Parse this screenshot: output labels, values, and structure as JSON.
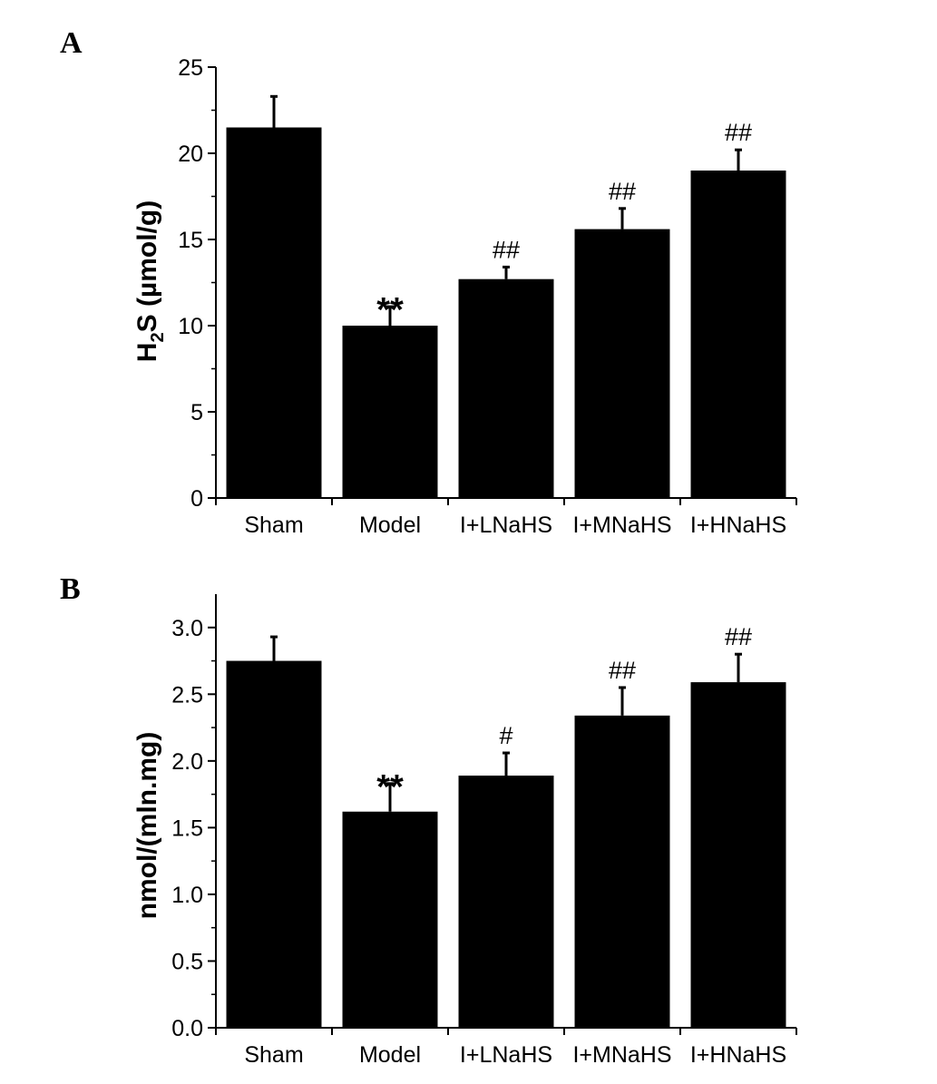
{
  "chart_data": [
    {
      "panel": "A",
      "type": "bar",
      "categories": [
        "Sham",
        "Model",
        "I+LNaHS",
        "I+MNaHS",
        "I+HNaHS"
      ],
      "values": [
        21.5,
        10.0,
        12.7,
        15.6,
        19.0
      ],
      "errors": [
        1.8,
        1.1,
        0.7,
        1.2,
        1.2
      ],
      "annotations": [
        "",
        "**",
        "##",
        "##",
        "##"
      ],
      "ylabel": {
        "prefix": "H",
        "subscript": "2",
        "suffix": "S (µmol/g)"
      },
      "ylim": [
        0,
        25
      ],
      "yticks": [
        "0",
        "5",
        "10",
        "15",
        "20",
        "25"
      ],
      "ytick_values": [
        0,
        5,
        10,
        15,
        20,
        25
      ],
      "color": "#000000"
    },
    {
      "panel": "B",
      "type": "bar",
      "categories": [
        "Sham",
        "Model",
        "I+LNaHS",
        "I+MNaHS",
        "I+HNaHS"
      ],
      "values": [
        2.75,
        1.62,
        1.89,
        2.34,
        2.59
      ],
      "errors": [
        0.18,
        0.21,
        0.17,
        0.21,
        0.21
      ],
      "annotations": [
        "",
        "**",
        "#",
        "##",
        "##"
      ],
      "ylabel": {
        "prefix": "nmol/(mln.mg)",
        "subscript": "",
        "suffix": ""
      },
      "ylim": [
        0,
        3.25
      ],
      "yticks": [
        "0.0",
        "0.5",
        "1.0",
        "1.5",
        "2.0",
        "2.5",
        "3.0"
      ],
      "ytick_values": [
        0,
        0.5,
        1.0,
        1.5,
        2.0,
        2.5,
        3.0
      ],
      "color": "#000000"
    }
  ]
}
